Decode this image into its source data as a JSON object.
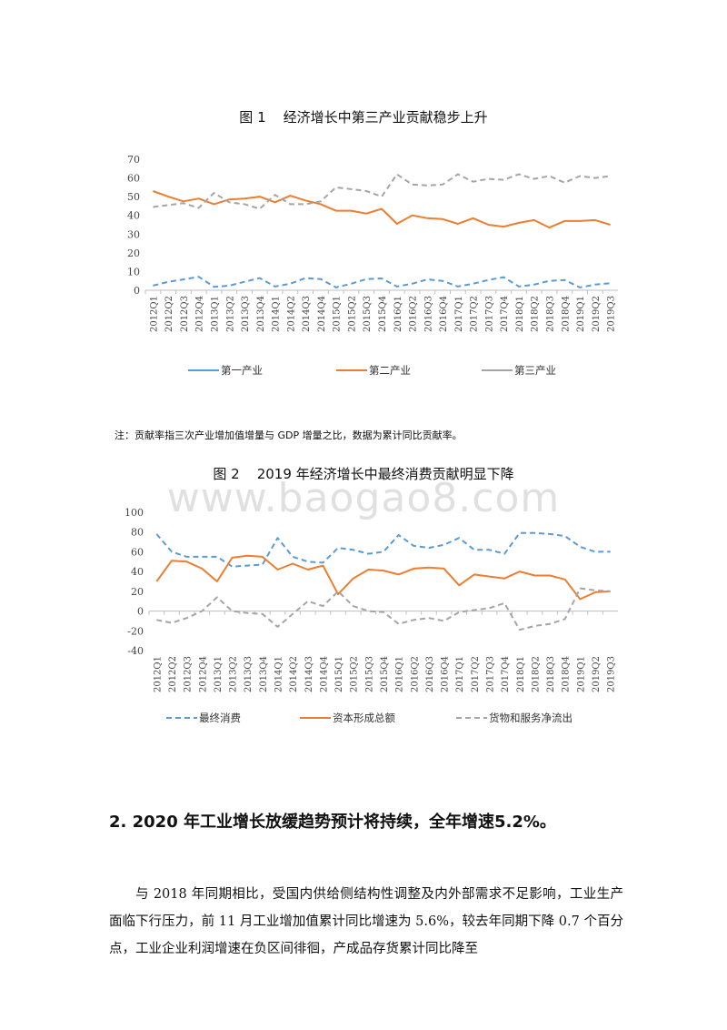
{
  "figure1": {
    "title": "图 1    经济增长中第三产业贡献稳步上升",
    "note": "注：贡献率指三次产业增加值增量与 GDP 增量之比，数据为累计同比贡献率。"
  },
  "figure2": {
    "title": "图 2    2019 年经济增长中最终消费贡献明显下降"
  },
  "watermark": "www.baogao8.com",
  "section": {
    "heading": "2. 2020 年工业增长放缓趋势预计将持续，全年增速5.2%。",
    "paragraph": "与 2018 年同期相比，受国内供给侧结构性调整及内外部需求不足影响，工业生产面临下行压力，前 11 月工业增加值累计同比增速为 5.6%，较去年同期下降 0.7 个百分点，工业企业利润增速在负区间徘徊，产成品存货累计同比降至"
  },
  "chart_data": [
    {
      "type": "line",
      "ylim": [
        0,
        70
      ],
      "yticks": [
        0,
        10,
        20,
        30,
        40,
        50,
        60,
        70
      ],
      "categories": [
        "2012Q1",
        "2012Q2",
        "2012Q3",
        "2012Q4",
        "2013Q1",
        "2013Q2",
        "2013Q3",
        "2013Q4",
        "2014Q1",
        "2014Q2",
        "2014Q3",
        "2014Q4",
        "2015Q1",
        "2015Q2",
        "2015Q3",
        "2015Q4",
        "2016Q1",
        "2016Q2",
        "2016Q3",
        "2016Q4",
        "2017Q1",
        "2017Q2",
        "2017Q3",
        "2017Q4",
        "2018Q1",
        "2018Q2",
        "2018Q3",
        "2018Q4",
        "2019Q1",
        "2019Q2",
        "2019Q3"
      ],
      "legend_position": "bottom",
      "series": [
        {
          "name": "第一产业",
          "color": "#5b9bd5",
          "dash": "dashed",
          "values": [
            2.5,
            4.5,
            5.8,
            7.2,
            1.8,
            2.5,
            4.5,
            6.5,
            2.0,
            3.5,
            6.5,
            6.0,
            1.5,
            3.5,
            6.0,
            6.3,
            2.0,
            3.5,
            5.8,
            5.0,
            2.0,
            3.5,
            5.5,
            7.0,
            2.0,
            3.0,
            5.0,
            5.5,
            1.5,
            3.0,
            3.8
          ]
        },
        {
          "name": "第二产业",
          "color": "#ed7d31",
          "dash": "solid",
          "values": [
            53,
            50,
            47.5,
            49,
            46,
            48.5,
            49,
            50,
            47,
            50.5,
            48,
            46,
            42.5,
            42.5,
            41,
            43.5,
            35.5,
            40,
            38.5,
            38,
            35.5,
            38.5,
            35,
            34,
            36,
            37.5,
            33.5,
            37,
            37,
            37.5,
            35
          ]
        },
        {
          "name": "第三产业",
          "color": "#a5a5a5",
          "dash": "dashed",
          "values": [
            44.5,
            45.5,
            46.5,
            44,
            52,
            47,
            46,
            43.5,
            51,
            46,
            46,
            47.5,
            55,
            54,
            53,
            50,
            62,
            56.5,
            56,
            56.5,
            62,
            58,
            59.5,
            59,
            62,
            59.5,
            61,
            57.5,
            61,
            60,
            61
          ]
        }
      ]
    },
    {
      "type": "line",
      "ylim": [
        -40,
        100
      ],
      "yticks": [
        -40,
        -20,
        0,
        20,
        40,
        60,
        80,
        100
      ],
      "categories": [
        "2012Q1",
        "2012Q2",
        "2012Q3",
        "2012Q4",
        "2013Q1",
        "2013Q2",
        "2013Q3",
        "2013Q4",
        "2014Q1",
        "2014Q2",
        "2014Q3",
        "2014Q4",
        "2015Q1",
        "2015Q2",
        "2015Q3",
        "2015Q4",
        "2016Q1",
        "2016Q2",
        "2016Q3",
        "2016Q4",
        "2017Q1",
        "2017Q2",
        "2017Q3",
        "2017Q4",
        "2018Q1",
        "2018Q2",
        "2018Q3",
        "2018Q4",
        "2019Q1",
        "2019Q2",
        "2019Q3"
      ],
      "legend_position": "bottom",
      "series": [
        {
          "name": "最终消费",
          "color": "#5b9bd5",
          "dash": "dashed",
          "values": [
            78,
            60,
            55,
            55,
            55,
            45,
            46,
            47,
            74,
            55,
            50,
            49,
            64,
            62,
            58,
            60,
            77,
            66,
            64,
            67,
            74,
            62,
            62,
            58,
            79,
            79,
            78,
            76,
            65,
            60,
            60
          ]
        },
        {
          "name": "资本形成总额",
          "color": "#ed7d31",
          "dash": "solid",
          "values": [
            30,
            51,
            50,
            43,
            30,
            54,
            56,
            55,
            42,
            48,
            42,
            46,
            17,
            33,
            42,
            41,
            37,
            43,
            44,
            43,
            26,
            37,
            35,
            33,
            40,
            36,
            36,
            32,
            12,
            19,
            20
          ]
        },
        {
          "name": "货物和服务净流出",
          "color": "#a5a5a5",
          "dash": "dashed",
          "values": [
            -9,
            -12,
            -7,
            0,
            14,
            0,
            -2,
            -3,
            -16,
            -3,
            10,
            5,
            20,
            5,
            0,
            -1,
            -13,
            -9,
            -7,
            -10,
            -1,
            1,
            3,
            8,
            -19,
            -15,
            -13,
            -8,
            23,
            21,
            20
          ]
        }
      ]
    }
  ]
}
